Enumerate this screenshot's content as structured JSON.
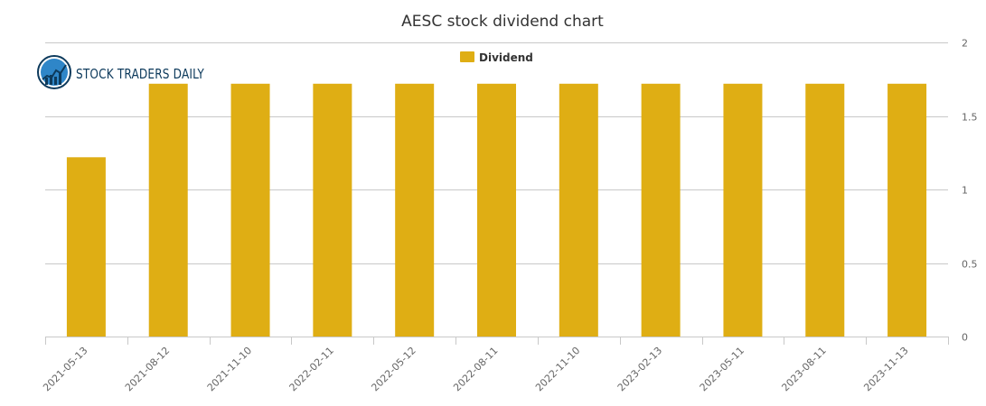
{
  "chart_data": {
    "type": "bar",
    "title": "AESC stock dividend chart",
    "categories": [
      "2021-05-13",
      "2021-08-12",
      "2021-11-10",
      "2022-02-11",
      "2022-05-12",
      "2022-08-11",
      "2022-11-10",
      "2023-02-13",
      "2023-05-11",
      "2023-08-11",
      "2023-11-13"
    ],
    "series": [
      {
        "name": "Dividend",
        "values": [
          1.219,
          1.719,
          1.719,
          1.719,
          1.719,
          1.719,
          1.719,
          1.719,
          1.719,
          1.719,
          1.719
        ]
      }
    ],
    "yticks": [
      "0",
      "0.5",
      "1",
      "1.5",
      "2"
    ],
    "ylim": [
      0,
      2
    ],
    "grid": true,
    "legend": "top-center",
    "y_axis_side": "right",
    "bar_color": "#dfae14"
  },
  "logo": {
    "text": "STOCK TRADERS DAILY"
  }
}
